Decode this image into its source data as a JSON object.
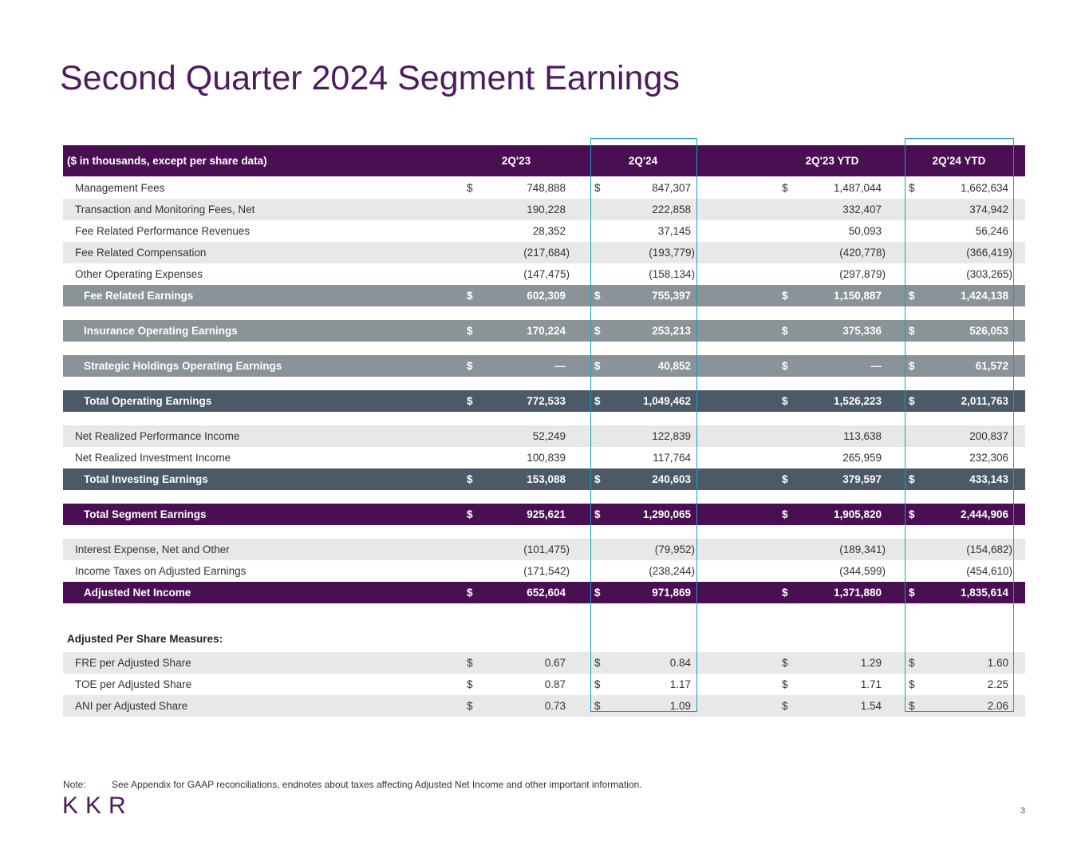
{
  "title": "Second Quarter 2024 Segment Earnings",
  "table": {
    "header": [
      "($ in thousands, except per share data)",
      "2Q'23",
      "2Q'24",
      "2Q'23 YTD",
      "2Q'24 YTD"
    ],
    "rows": [
      {
        "label": "Management Fees",
        "currency": "$",
        "cells": [
          "748,888",
          "847,307",
          "1,487,044",
          "1,662,634"
        ]
      },
      {
        "label": "Transaction and Monitoring Fees, Net",
        "shaded": true,
        "cells": [
          "190,228",
          "222,858",
          "332,407",
          "374,942"
        ]
      },
      {
        "label": "Fee Related Performance Revenues",
        "cells": [
          "28,352",
          "37,145",
          "50,093",
          "56,246"
        ]
      },
      {
        "label": "Fee Related Compensation",
        "shaded": true,
        "cells": [
          "(217,684)",
          "(193,779)",
          "(420,778)",
          "(366,419)"
        ]
      },
      {
        "label": "Other Operating Expenses",
        "cells": [
          "(147,475)",
          "(158,134)",
          "(297,879)",
          "(303,265)"
        ]
      },
      {
        "label": "Fee Related Earnings",
        "style": "subtotal",
        "currency": "$",
        "cells": [
          "602,309",
          "755,397",
          "1,150,887",
          "1,424,138"
        ]
      },
      {
        "label": "Insurance Operating Earnings",
        "style": "subtotal",
        "currency": "$",
        "cells": [
          "170,224",
          "253,213",
          "375,336",
          "526,053"
        ]
      },
      {
        "label": "Strategic Holdings Operating Earnings",
        "style": "subtotal",
        "currency": "$",
        "cells": [
          "—",
          "40,852",
          "—",
          "61,572"
        ]
      },
      {
        "label": "Total Operating Earnings",
        "style": "total",
        "currency": "$",
        "cells": [
          "772,533",
          "1,049,462",
          "1,526,223",
          "2,011,763"
        ]
      },
      {
        "label": "Net Realized Performance Income",
        "shaded": true,
        "cells": [
          "52,249",
          "122,839",
          "113,638",
          "200,837"
        ]
      },
      {
        "label": "Net Realized Investment Income",
        "cells": [
          "100,839",
          "117,764",
          "265,959",
          "232,306"
        ]
      },
      {
        "label": "Total Investing Earnings",
        "style": "total",
        "currency": "$",
        "cells": [
          "153,088",
          "240,603",
          "379,597",
          "433,143"
        ]
      },
      {
        "label": "Total Segment Earnings",
        "style": "grand",
        "currency": "$",
        "cells": [
          "925,621",
          "1,290,065",
          "1,905,820",
          "2,444,906"
        ]
      },
      {
        "label": "Interest Expense, Net and Other",
        "shaded": true,
        "cells": [
          "(101,475)",
          "(79,952)",
          "(189,341)",
          "(154,682)"
        ]
      },
      {
        "label": "Income Taxes on Adjusted Earnings",
        "cells": [
          "(171,542)",
          "(238,244)",
          "(344,599)",
          "(454,610)"
        ]
      },
      {
        "label": "Adjusted Net Income",
        "style": "grand",
        "currency": "$",
        "cells": [
          "652,604",
          "971,869",
          "1,371,880",
          "1,835,614"
        ]
      }
    ],
    "per_share": {
      "title": "Adjusted Per Share Measures:",
      "rows": [
        {
          "label": "FRE per Adjusted Share",
          "shaded": true,
          "currency": "$",
          "cells": [
            "0.67",
            "0.84",
            "1.29",
            "1.60"
          ]
        },
        {
          "label": "TOE per Adjusted Share",
          "currency": "$",
          "cells": [
            "0.87",
            "1.17",
            "1.71",
            "2.25"
          ]
        },
        {
          "label": "ANI per Adjusted Share",
          "shaded": true,
          "currency": "$",
          "cells": [
            "0.73",
            "1.09",
            "1.54",
            "2.06"
          ]
        }
      ]
    }
  },
  "note": {
    "label": "Note:",
    "text": "See Appendix for GAAP reconciliations, endnotes about taxes affecting Adjusted Net Income and other important information."
  },
  "logo": "KKR",
  "page_number": "3"
}
